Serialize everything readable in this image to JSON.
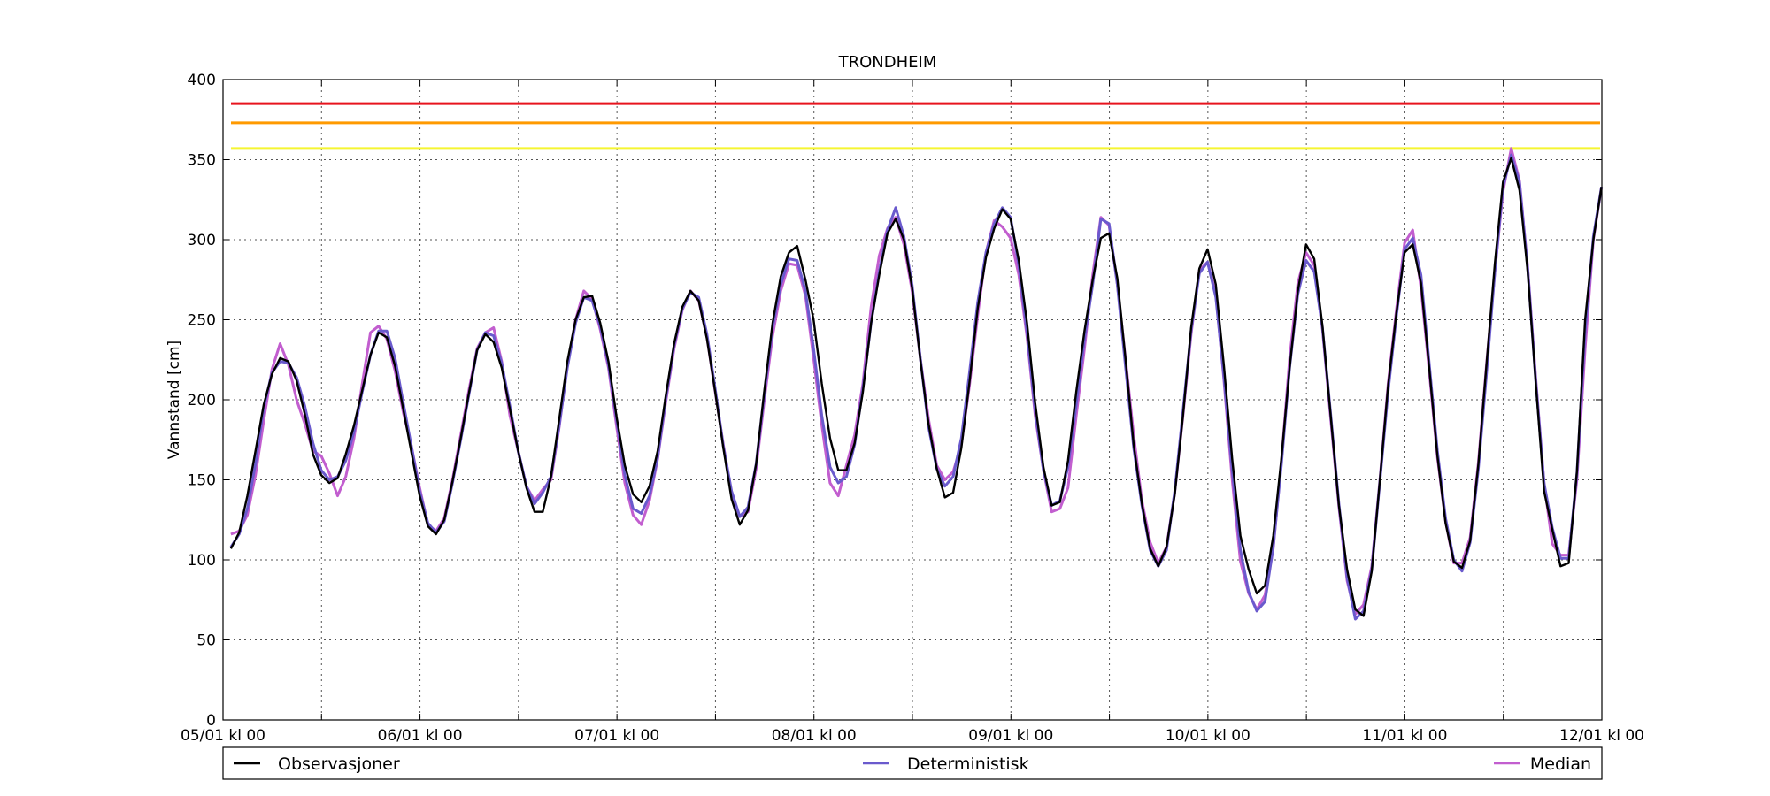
{
  "chart_data": {
    "type": "line",
    "title": "TRONDHEIM",
    "ylabel": "Vannstand [cm]",
    "xlabel": "",
    "ylim": [
      0,
      400
    ],
    "yticks": [
      0,
      50,
      100,
      150,
      200,
      250,
      300,
      350,
      400
    ],
    "x_range_days": [
      0,
      7
    ],
    "xtick_labels": [
      "05/01 kl 00",
      "06/01 kl 00",
      "07/01 kl 00",
      "08/01 kl 00",
      "09/01 kl 00",
      "10/01 kl 00",
      "11/01 kl 00",
      "12/01 kl 00"
    ],
    "grid": true,
    "legend_position": "bottom",
    "thresholds": [
      {
        "value": 385,
        "color": "#e8141e"
      },
      {
        "value": 373,
        "color": "#ff9a00"
      },
      {
        "value": 357,
        "color": "#f5f532"
      }
    ],
    "series": [
      {
        "name": "Observasjoner",
        "color": "#000000",
        "x_start_day": 0.04,
        "x_step_hours": 1,
        "values": [
          107,
          117,
          140,
          168,
          197,
          216,
          226,
          224,
          212,
          191,
          166,
          153,
          148,
          151,
          166,
          184,
          206,
          228,
          242,
          239,
          221,
          194,
          167,
          140,
          121,
          116,
          125,
          149,
          176,
          204,
          231,
          241,
          236,
          220,
          194,
          168,
          145,
          130,
          130,
          152,
          188,
          224,
          250,
          264,
          265,
          248,
          224,
          189,
          159,
          141,
          136,
          146,
          168,
          203,
          235,
          258,
          268,
          262,
          238,
          205,
          170,
          138,
          122,
          131,
          160,
          206,
          248,
          277,
          292,
          296,
          275,
          250,
          210,
          176,
          156,
          156,
          173,
          205,
          248,
          278,
          304,
          313,
          300,
          270,
          225,
          185,
          157,
          139,
          142,
          170,
          211,
          257,
          289,
          307,
          319,
          313,
          287,
          248,
          198,
          158,
          134,
          136,
          162,
          205,
          243,
          275,
          301,
          304,
          276,
          226,
          172,
          135,
          107,
          96,
          108,
          141,
          190,
          245,
          282,
          294,
          272,
          221,
          163,
          115,
          94,
          79,
          84,
          115,
          164,
          220,
          268,
          297,
          288,
          246,
          190,
          134,
          94,
          69,
          65,
          93,
          150,
          209,
          254,
          292,
          297,
          273,
          220,
          165,
          123,
          99,
          95,
          112,
          160,
          223,
          285,
          336,
          351,
          331,
          280,
          210,
          143,
          119,
          96,
          98,
          155,
          250,
          300,
          333
        ],
        "smooth": true
      },
      {
        "name": "Deterministisk",
        "color": "#6a5acd",
        "x_start_day": 0.04,
        "x_step_hours": 1,
        "values": [
          108,
          116,
          132,
          160,
          195,
          217,
          224,
          223,
          214,
          196,
          173,
          156,
          150,
          152,
          162,
          180,
          205,
          228,
          243,
          243,
          226,
          198,
          171,
          143,
          123,
          117,
          124,
          148,
          175,
          203,
          231,
          242,
          240,
          223,
          196,
          168,
          146,
          135,
          142,
          152,
          184,
          220,
          248,
          264,
          262,
          246,
          222,
          187,
          153,
          132,
          129,
          140,
          164,
          201,
          234,
          257,
          267,
          264,
          241,
          207,
          171,
          143,
          127,
          133,
          160,
          204,
          245,
          272,
          288,
          287,
          268,
          232,
          190,
          158,
          148,
          152,
          172,
          207,
          248,
          280,
          306,
          320,
          302,
          272,
          226,
          183,
          157,
          146,
          152,
          176,
          217,
          261,
          292,
          310,
          320,
          314,
          284,
          242,
          193,
          156,
          134,
          137,
          158,
          197,
          238,
          272,
          313,
          310,
          272,
          221,
          170,
          134,
          106,
          96,
          106,
          143,
          193,
          243,
          279,
          286,
          264,
          214,
          156,
          106,
          80,
          68,
          74,
          108,
          160,
          220,
          266,
          287,
          280,
          245,
          191,
          135,
          89,
          63,
          68,
          94,
          149,
          205,
          252,
          294,
          301,
          278,
          223,
          168,
          126,
          100,
          93,
          111,
          157,
          217,
          280,
          333,
          353,
          336,
          282,
          211,
          148,
          120,
          101,
          101,
          154,
          243,
          302,
          333
        ],
        "smooth": true
      },
      {
        "name": "Median",
        "color": "#c25ecf",
        "x_start_day": 0.04,
        "x_step_hours": 1,
        "values": [
          116,
          118,
          128,
          153,
          187,
          219,
          235,
          222,
          200,
          185,
          168,
          165,
          154,
          140,
          152,
          176,
          210,
          242,
          246,
          238,
          218,
          192,
          171,
          145,
          122,
          118,
          126,
          150,
          178,
          206,
          232,
          242,
          245,
          224,
          190,
          168,
          146,
          137,
          144,
          150,
          183,
          221,
          250,
          268,
          263,
          244,
          220,
          183,
          148,
          128,
          122,
          137,
          163,
          199,
          232,
          256,
          268,
          262,
          239,
          205,
          172,
          142,
          127,
          130,
          157,
          200,
          240,
          268,
          285,
          284,
          265,
          226,
          184,
          148,
          140,
          159,
          178,
          210,
          258,
          290,
          307,
          314,
          297,
          268,
          226,
          188,
          159,
          150,
          155,
          172,
          209,
          253,
          292,
          312,
          308,
          301,
          278,
          239,
          190,
          156,
          130,
          132,
          145,
          190,
          232,
          278,
          314,
          309,
          272,
          226,
          178,
          137,
          111,
          98,
          108,
          142,
          190,
          241,
          281,
          286,
          266,
          212,
          150,
          99,
          79,
          69,
          78,
          107,
          162,
          226,
          273,
          292,
          284,
          244,
          188,
          133,
          87,
          66,
          72,
          96,
          150,
          210,
          256,
          298,
          306,
          270,
          218,
          164,
          124,
          98,
          98,
          114,
          161,
          223,
          280,
          330,
          357,
          337,
          283,
          213,
          148,
          110,
          103,
          103,
          150,
          232,
          300,
          333
        ],
        "smooth": true
      }
    ]
  }
}
